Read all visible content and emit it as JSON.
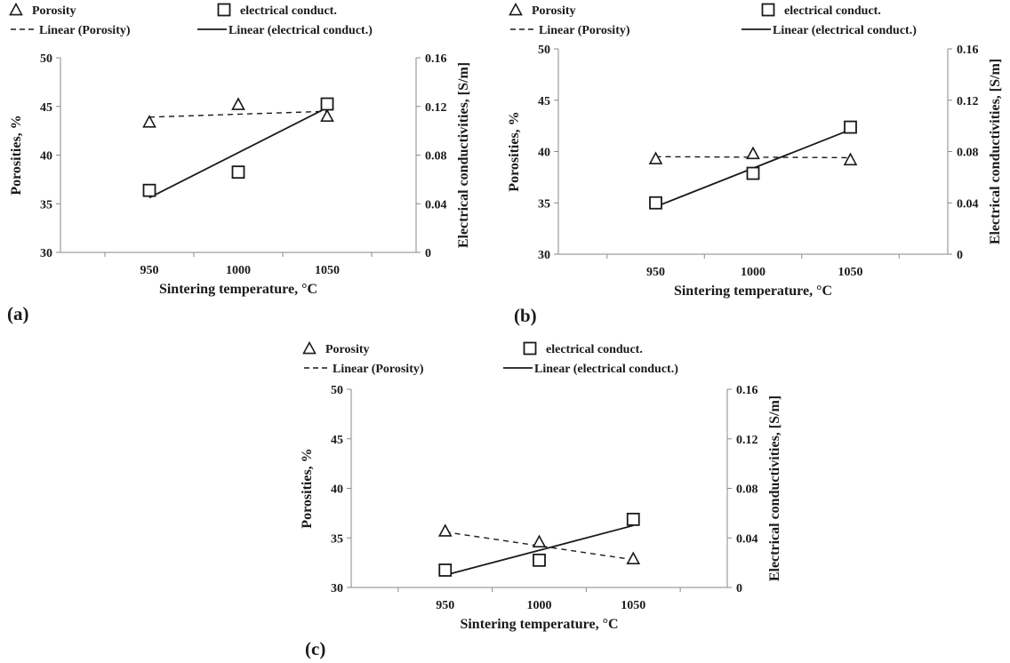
{
  "colors": {
    "ink": "#1a1a1a",
    "axis": "#8a8a8a",
    "background": "#ffffff"
  },
  "legend": {
    "porosity": "Porosity",
    "conductivity": "electrical conduct.",
    "porosity_trend": "Linear (Porosity)",
    "conductivity_trend": "Linear (electrical conduct.)"
  },
  "chart_data": [
    {
      "type": "scatter",
      "panel_label": "(a)",
      "xlabel": "Sintering temperature, °C",
      "ylabel": "Porosities, %",
      "y2label": "Electrical conductivities, [S/m]",
      "x_ticks": [
        "950",
        "1000",
        "1050"
      ],
      "y_ticks": [
        "30",
        "35",
        "40",
        "45",
        "50"
      ],
      "y2_ticks": [
        "0",
        "0.04",
        "0.08",
        "0.12",
        "0.16"
      ],
      "xlim": [
        900,
        1100
      ],
      "ylim": [
        30,
        50
      ],
      "y2lim": [
        0,
        0.16
      ],
      "legend_position": "top",
      "series": [
        {
          "name": "Porosity",
          "axis": "left",
          "marker": "triangle",
          "x": [
            950,
            1000,
            1050
          ],
          "y": [
            43.4,
            45.2,
            44.0
          ]
        },
        {
          "name": "electrical conduct.",
          "axis": "right",
          "marker": "square",
          "x": [
            950,
            1000,
            1050
          ],
          "y": [
            0.051,
            0.066,
            0.122
          ]
        }
      ],
      "trendlines": [
        {
          "name": "Linear (Porosity)",
          "axis": "left",
          "style": "dashed",
          "x": [
            950,
            1050
          ],
          "y": [
            43.9,
            44.5
          ]
        },
        {
          "name": "Linear (electrical conduct.)",
          "axis": "right",
          "style": "solid",
          "x": [
            950,
            1050
          ],
          "y": [
            0.045,
            0.119
          ]
        }
      ]
    },
    {
      "type": "scatter",
      "panel_label": "(b)",
      "xlabel": "Sintering temperature, °C",
      "ylabel": "Porosities, %",
      "y2label": "Electrical conductivities, [S/m]",
      "x_ticks": [
        "950",
        "1000",
        "1050"
      ],
      "y_ticks": [
        "30",
        "35",
        "40",
        "45",
        "50"
      ],
      "y2_ticks": [
        "0",
        "0.04",
        "0.08",
        "0.12",
        "0.16"
      ],
      "xlim": [
        900,
        1100
      ],
      "ylim": [
        30,
        50
      ],
      "y2lim": [
        0,
        0.16
      ],
      "legend_position": "top",
      "series": [
        {
          "name": "Porosity",
          "axis": "left",
          "marker": "triangle",
          "x": [
            950,
            1000,
            1050
          ],
          "y": [
            39.3,
            39.8,
            39.2
          ]
        },
        {
          "name": "electrical conduct.",
          "axis": "right",
          "marker": "square",
          "x": [
            950,
            1000,
            1050
          ],
          "y": [
            0.04,
            0.063,
            0.099
          ]
        }
      ],
      "trendlines": [
        {
          "name": "Linear (Porosity)",
          "axis": "left",
          "style": "dashed",
          "x": [
            950,
            1050
          ],
          "y": [
            39.5,
            39.4
          ]
        },
        {
          "name": "Linear (electrical conduct.)",
          "axis": "right",
          "style": "solid",
          "x": [
            950,
            1050
          ],
          "y": [
            0.037,
            0.097
          ]
        }
      ]
    },
    {
      "type": "scatter",
      "panel_label": "(c)",
      "xlabel": "Sintering temperature, °C",
      "ylabel": "Porosities, %",
      "y2label": "Electrical conductivities, [S/m]",
      "x_ticks": [
        "950",
        "1000",
        "1050"
      ],
      "y_ticks": [
        "30",
        "35",
        "40",
        "45",
        "50"
      ],
      "y2_ticks": [
        "0",
        "0.04",
        "0.08",
        "0.12",
        "0.16"
      ],
      "xlim": [
        900,
        1100
      ],
      "ylim": [
        30,
        50
      ],
      "y2lim": [
        0,
        0.16
      ],
      "legend_position": "top",
      "series": [
        {
          "name": "Porosity",
          "axis": "left",
          "marker": "triangle",
          "x": [
            950,
            1000,
            1050
          ],
          "y": [
            35.7,
            34.6,
            32.9
          ]
        },
        {
          "name": "electrical conduct.",
          "axis": "right",
          "marker": "square",
          "x": [
            950,
            1000,
            1050
          ],
          "y": [
            0.014,
            0.022,
            0.055
          ]
        }
      ],
      "trendlines": [
        {
          "name": "Linear (Porosity)",
          "axis": "left",
          "style": "dashed",
          "x": [
            950,
            1050
          ],
          "y": [
            35.6,
            32.8
          ]
        },
        {
          "name": "Linear (electrical conduct.)",
          "axis": "right",
          "style": "solid",
          "x": [
            950,
            1050
          ],
          "y": [
            0.01,
            0.05
          ]
        }
      ]
    }
  ]
}
